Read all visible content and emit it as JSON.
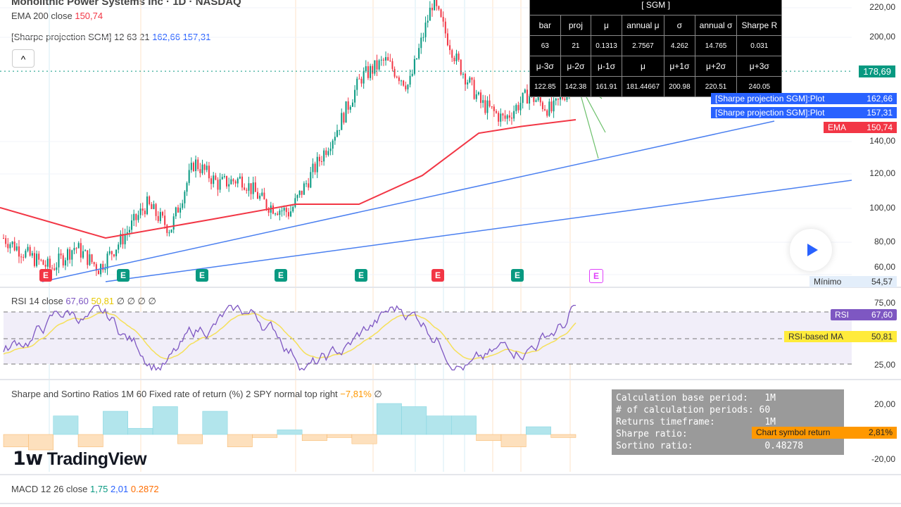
{
  "header": {
    "title": "Monolithic Power Systems Inc · 1D · NASDAQ"
  },
  "legends": {
    "ema": {
      "label": "EMA 200 close",
      "value": "150,74"
    },
    "sharpe_proj": {
      "label": "[Sharpe projection SGM] 12 63 21",
      "v1": "162,66",
      "v2": "157,31"
    },
    "rsi": {
      "label": "RSI 14 close",
      "v1": "67,60",
      "v2": "50,81",
      "extra": "∅ ∅ ∅ ∅"
    },
    "sharpe_sortino": {
      "label": "Sharpe and Sortino Ratios 1M 60 Fixed rate of return (%) 2 SPY normal top right",
      "value": "−7,81%",
      "extra": "∅"
    },
    "macd": {
      "label": "MACD 12 26 close",
      "v1": "1,75",
      "v2": "2,01",
      "v3": "0.2872"
    }
  },
  "collapse_button": "^",
  "sgm_table": {
    "title": "[ SGM ]",
    "header1": [
      "bar",
      "proj",
      "μ",
      "annual μ",
      "σ",
      "annual σ",
      "Sharpe R"
    ],
    "row1": [
      "63",
      "21",
      "0.1313",
      "2.7567",
      "4.262",
      "14.765",
      "0.031"
    ],
    "header2": [
      "μ-3σ",
      "μ-2σ",
      "μ-1σ",
      "μ",
      "μ+1σ",
      "μ+2σ",
      "μ+3σ"
    ],
    "row2": [
      "122.85",
      "142.38",
      "161.91",
      "181.44667",
      "200.98",
      "220.51",
      "240.05"
    ]
  },
  "price_axis": [
    "220,00",
    "200,00",
    "140,00",
    "120,00",
    "100,00",
    "80,00",
    "60,00"
  ],
  "price_tags": {
    "last": {
      "value": "178,69",
      "color": "#089981"
    },
    "plot1": {
      "label": "[Sharpe projection SGM]:Plot",
      "value": "162,66",
      "color": "#2962ff"
    },
    "plot2": {
      "label": "[Sharpe projection SGM]:Plot",
      "value": "157,31",
      "color": "#2962ff"
    },
    "ema": {
      "label": "EMA",
      "value": "150,74",
      "color": "#f23645"
    },
    "min": {
      "label": "Mínimo",
      "value": "54,57"
    }
  },
  "rsi_axis": [
    "75,00",
    "25,00"
  ],
  "rsi_tags": {
    "rsi": {
      "label": "RSI",
      "value": "67,60",
      "color": "#7e57c2"
    },
    "ma": {
      "label": "RSI-based MA",
      "value": "50,81",
      "color": "#ffeb3b"
    }
  },
  "sharpe_axis": [
    "20,00",
    "-20,00"
  ],
  "stats_box": {
    "lines": [
      "Calculation base period:   1M",
      "# of calculation periods: 60",
      "Returns timeframe:         1M",
      "Sharpe ratio:",
      "Sortino ratio:             0.48278"
    ]
  },
  "chart_symbol_return": {
    "label": "Chart symbol return",
    "value": "2,81%",
    "color": "#ff9800"
  },
  "earnings": [
    {
      "type": "E",
      "color": "#f23645"
    },
    {
      "type": "E",
      "color": "#089981"
    },
    {
      "type": "E",
      "color": "#089981"
    },
    {
      "type": "E",
      "color": "#089981"
    },
    {
      "type": "E",
      "color": "#089981"
    },
    {
      "type": "E",
      "color": "#f23645"
    },
    {
      "type": "E",
      "color": "#089981"
    },
    {
      "type": "E",
      "color": "#e040fb"
    }
  ],
  "logo": "TradingView",
  "chart_data": {
    "type": "candlestick",
    "price_path": [
      80,
      70,
      62,
      75,
      62,
      80,
      100,
      85,
      125,
      112,
      115,
      100,
      95,
      120,
      145,
      175,
      185,
      170,
      220,
      185,
      160,
      150,
      165,
      155,
      175
    ],
    "ema200": [
      98,
      80,
      91,
      100,
      100,
      117,
      142,
      146,
      150
    ],
    "price_ylim": [
      54,
      222
    ],
    "rsi_levels": [
      75,
      50,
      25
    ],
    "last_rsi": 67.6,
    "last_rsi_ma": 50.81,
    "sharpe_bars": [
      -8,
      -10,
      12,
      -8,
      15,
      4,
      18,
      -6,
      15,
      -8,
      -2,
      3,
      -4,
      -2,
      -6,
      20,
      18,
      12,
      12,
      -4,
      -8,
      5,
      -2
    ]
  }
}
